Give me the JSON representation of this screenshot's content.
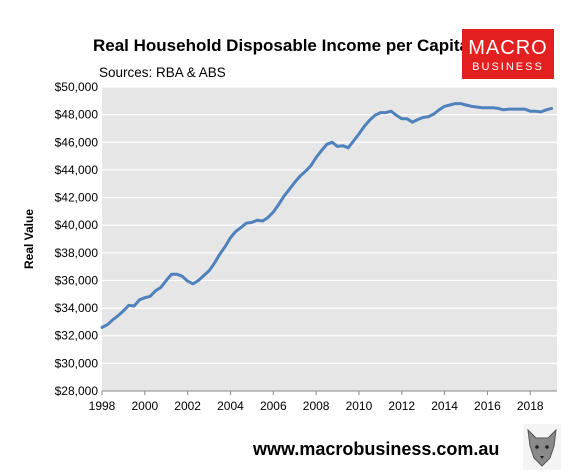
{
  "chart_data": {
    "type": "line",
    "title": "Real Household Disposable Income per Capita",
    "subtitle": "Sources: RBA & ABS",
    "ylabel": "Real Value",
    "xlim": [
      1998,
      2019.25
    ],
    "ylim": [
      28000,
      50000
    ],
    "x_ticks": [
      "1998",
      "2000",
      "2002",
      "2004",
      "2006",
      "2008",
      "2010",
      "2012",
      "2014",
      "2016",
      "2018"
    ],
    "y_ticks": [
      "$28,000",
      "$30,000",
      "$32,000",
      "$34,000",
      "$36,000",
      "$38,000",
      "$40,000",
      "$42,000",
      "$44,000",
      "$46,000",
      "$48,000",
      "$50,000"
    ],
    "series_color": "#4f81bd",
    "plot_background": "#e6e6e6",
    "grid": "horizontal, white",
    "series": [
      {
        "x": [
          1998.0,
          1998.25,
          1998.5,
          1998.75,
          1999.0,
          1999.25,
          1999.5,
          1999.75,
          2000.0,
          2000.25,
          2000.5,
          2000.75,
          2001.0,
          2001.25,
          2001.5,
          2001.75,
          2002.0,
          2002.25,
          2002.5,
          2002.75,
          2003.0,
          2003.25,
          2003.5,
          2003.75,
          2004.0,
          2004.25,
          2004.5,
          2004.75,
          2005.0,
          2005.25,
          2005.5,
          2005.75,
          2006.0,
          2006.25,
          2006.5,
          2006.75,
          2007.0,
          2007.25,
          2007.5,
          2007.75,
          2008.0,
          2008.25,
          2008.5,
          2008.75,
          2009.0,
          2009.25,
          2009.5,
          2009.75,
          2010.0,
          2010.25,
          2010.5,
          2010.75,
          2011.0,
          2011.25,
          2011.5,
          2011.75,
          2012.0,
          2012.25,
          2012.5,
          2012.75,
          2013.0,
          2013.25,
          2013.5,
          2013.75,
          2014.0,
          2014.25,
          2014.5,
          2014.75,
          2015.0,
          2015.25,
          2015.5,
          2015.75,
          2016.0,
          2016.25,
          2016.5,
          2016.75,
          2017.0,
          2017.25,
          2017.5,
          2017.75,
          2018.0,
          2018.25,
          2018.5,
          2018.75,
          2019.0
        ],
        "y": [
          32600,
          32800,
          33150,
          33450,
          33800,
          34200,
          34150,
          34600,
          34750,
          34850,
          35250,
          35500,
          36000,
          36450,
          36450,
          36300,
          35950,
          35750,
          36000,
          36350,
          36700,
          37250,
          37900,
          38450,
          39100,
          39550,
          39850,
          40150,
          40200,
          40350,
          40300,
          40550,
          40950,
          41500,
          42100,
          42600,
          43100,
          43550,
          43900,
          44300,
          44900,
          45400,
          45850,
          46000,
          45700,
          45750,
          45600,
          46100,
          46600,
          47150,
          47600,
          47950,
          48150,
          48150,
          48250,
          47950,
          47700,
          47700,
          47450,
          47650,
          47800,
          47850,
          48050,
          48350,
          48600,
          48700,
          48800,
          48800,
          48700,
          48600,
          48550,
          48500,
          48500,
          48500,
          48450,
          48350,
          48400,
          48400,
          48400,
          48400,
          48250,
          48250,
          48200,
          48350,
          48450
        ]
      }
    ]
  },
  "watermark": "www.macrobusiness.com.au",
  "logo": {
    "top": "MACRO",
    "bottom": "BUSINESS",
    "color": "#e31f1f"
  }
}
